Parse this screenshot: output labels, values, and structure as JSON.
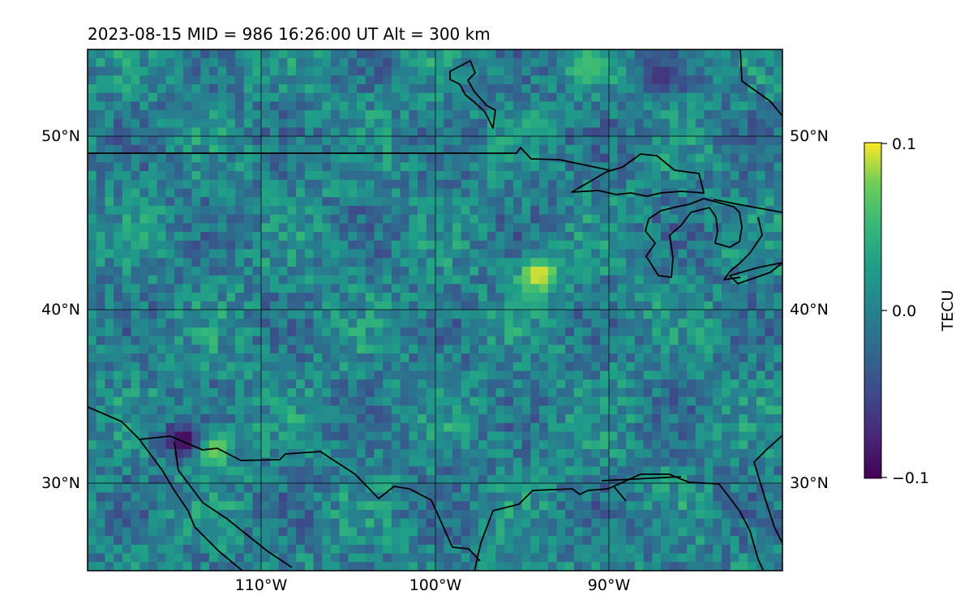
{
  "title": "2023-08-15  MID = 986    16:26:00  UT  Alt = 300 km",
  "chart_data": {
    "type": "heatmap",
    "title": "2023-08-15  MID = 986    16:26:00  UT  Alt = 300 km",
    "projection": "plate carree",
    "lon_range": [
      -120,
      -80
    ],
    "lat_range": [
      25,
      55
    ],
    "x_ticks": [
      {
        "value": -110,
        "label": "110°W"
      },
      {
        "value": -100,
        "label": "100°W"
      },
      {
        "value": -90,
        "label": "90°W"
      }
    ],
    "y_ticks": [
      {
        "value": 30,
        "label": "30°N"
      },
      {
        "value": 40,
        "label": "40°N"
      },
      {
        "value": 50,
        "label": "50°N"
      }
    ],
    "gridlines": true,
    "colormap": "viridis",
    "colorbar": {
      "label": "TECU",
      "min": -0.1,
      "max": 0.1,
      "ticks": [
        {
          "value": 0.1,
          "label": "0.1"
        },
        {
          "value": 0.0,
          "label": "0.0"
        },
        {
          "value": -0.1,
          "label": "−0.1"
        }
      ],
      "placement": "right"
    },
    "notable_values": [
      {
        "lon": -113,
        "lat": 32,
        "value": 0.1
      },
      {
        "lon": -114.5,
        "lat": 32.5,
        "value": -0.1
      },
      {
        "lon": -94,
        "lat": 42,
        "value": 0.1
      },
      {
        "lon": -87,
        "lat": 53.5,
        "value": -0.07
      },
      {
        "lon": -91,
        "lat": 54,
        "value": 0.06
      }
    ]
  }
}
